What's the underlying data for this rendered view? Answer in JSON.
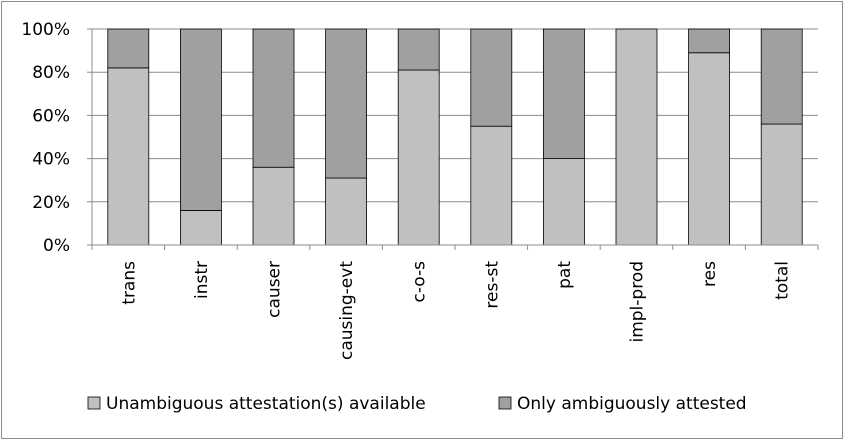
{
  "chart_data": {
    "type": "bar",
    "stacked": true,
    "percent": true,
    "categories": [
      "trans",
      "instr",
      "causer",
      "causing-evt",
      "c-o-s",
      "res-st",
      "pat",
      "impl-prod",
      "res",
      "total"
    ],
    "series": [
      {
        "name": "Unambiguous attestation(s) available",
        "color": "#c0c0c0",
        "values": [
          82,
          16,
          36,
          31,
          81,
          55,
          40,
          100,
          89,
          56
        ]
      },
      {
        "name": "Only ambiguously attested",
        "color": "#a0a0a0",
        "values": [
          18,
          84,
          64,
          69,
          19,
          45,
          60,
          0,
          11,
          44
        ]
      }
    ],
    "y_ticks": [
      "0%",
      "20%",
      "40%",
      "60%",
      "80%",
      "100%"
    ],
    "ylim": [
      0,
      100
    ],
    "grid": true,
    "legend_position": "bottom",
    "title": "",
    "xlabel": "",
    "ylabel": ""
  }
}
